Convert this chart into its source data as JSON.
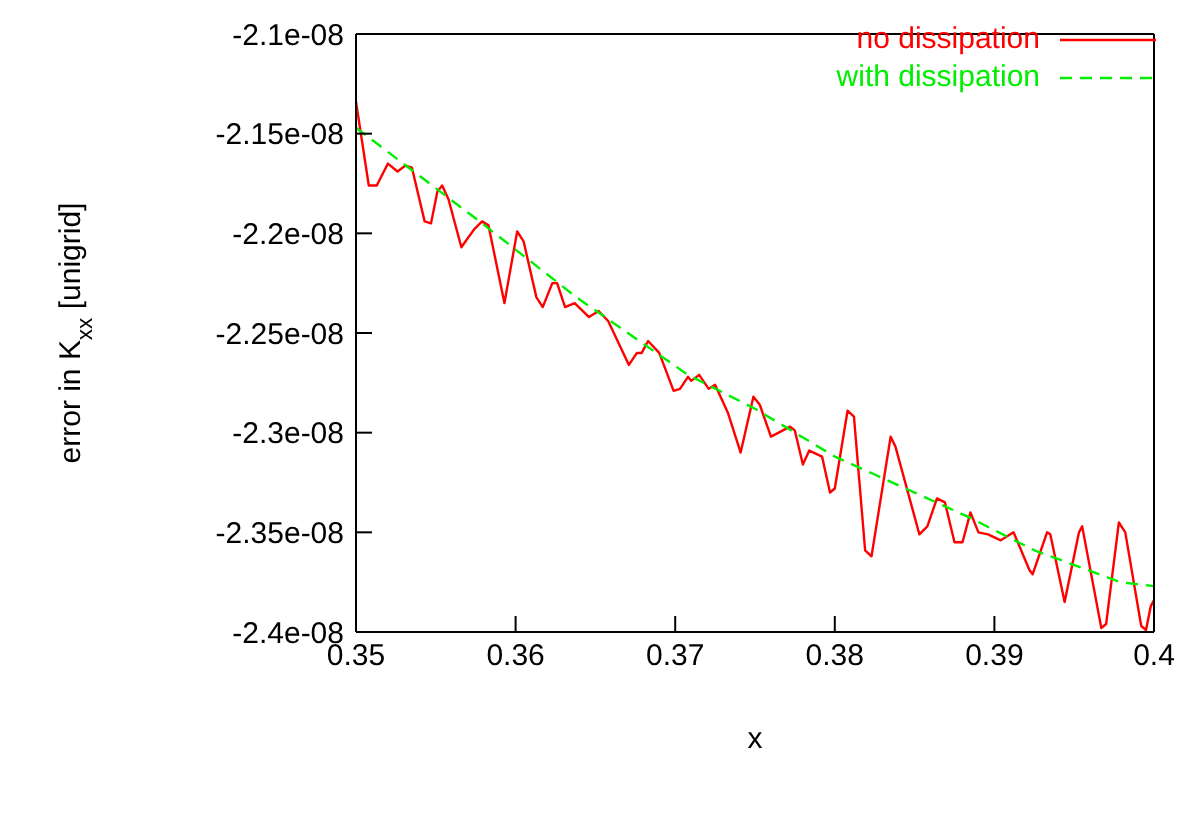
{
  "chart_data": {
    "type": "line",
    "xlabel": "x",
    "ylabel": "error in K$_{xx}$ [unigrid]",
    "xlim": [
      0.35,
      0.4
    ],
    "xticks": [
      0.35,
      0.36,
      0.37,
      0.38,
      0.39,
      0.4
    ],
    "ylim": [
      -2.4e-08,
      -2.1e-08
    ],
    "yticks": [
      {
        "value": -2.4e-08,
        "label": "-2.4e-08"
      },
      {
        "value": -2.35e-08,
        "label": "-2.35e-08"
      },
      {
        "value": -2.3e-08,
        "label": "-2.3e-08"
      },
      {
        "value": -2.25e-08,
        "label": "-2.25e-08"
      },
      {
        "value": -2.2e-08,
        "label": "-2.2e-08"
      },
      {
        "value": -2.15e-08,
        "label": "-2.15e-08"
      },
      {
        "value": -2.1e-08,
        "label": "-2.1e-08"
      }
    ],
    "legend": "top right",
    "marker": "none",
    "series": [
      {
        "name": "no dissipation",
        "color": "#ff0000",
        "line_style": "solid",
        "x": [
          0.35,
          0.3508,
          0.3513,
          0.352,
          0.3526,
          0.3531,
          0.3535,
          0.3543,
          0.3547,
          0.3551,
          0.3554,
          0.3558,
          0.3566,
          0.3574,
          0.3579,
          0.3583,
          0.3593,
          0.3601,
          0.3605,
          0.3613,
          0.3617,
          0.3623,
          0.3626,
          0.3631,
          0.3637,
          0.3646,
          0.3652,
          0.3658,
          0.3671,
          0.3676,
          0.3679,
          0.3683,
          0.369,
          0.3699,
          0.3703,
          0.3708,
          0.371,
          0.3715,
          0.3721,
          0.3725,
          0.3733,
          0.3741,
          0.3749,
          0.3753,
          0.376,
          0.3772,
          0.3775,
          0.378,
          0.3784,
          0.3792,
          0.3797,
          0.38,
          0.3808,
          0.3812,
          0.3819,
          0.3823,
          0.3835,
          0.3838,
          0.3853,
          0.3858,
          0.3864,
          0.3869,
          0.3875,
          0.388,
          0.3885,
          0.389,
          0.3896,
          0.3904,
          0.3912,
          0.3922,
          0.3924,
          0.3933,
          0.3935,
          0.3944,
          0.3953,
          0.3955,
          0.3967,
          0.397,
          0.3978,
          0.3982,
          0.3992,
          0.3995,
          0.3998,
          0.4
        ],
        "values": [
          -2.134e-08,
          -2.176e-08,
          -2.176e-08,
          -2.165e-08,
          -2.169e-08,
          -2.166e-08,
          -2.167e-08,
          -2.194e-08,
          -2.195e-08,
          -2.179e-08,
          -2.176e-08,
          -2.183e-08,
          -2.207e-08,
          -2.198e-08,
          -2.194e-08,
          -2.196e-08,
          -2.235e-08,
          -2.199e-08,
          -2.204e-08,
          -2.232e-08,
          -2.237e-08,
          -2.225e-08,
          -2.225e-08,
          -2.237e-08,
          -2.235e-08,
          -2.242e-08,
          -2.239e-08,
          -2.244e-08,
          -2.266e-08,
          -2.26e-08,
          -2.26e-08,
          -2.254e-08,
          -2.26e-08,
          -2.279e-08,
          -2.278e-08,
          -2.272e-08,
          -2.274e-08,
          -2.271e-08,
          -2.278e-08,
          -2.276e-08,
          -2.29e-08,
          -2.31e-08,
          -2.282e-08,
          -2.286e-08,
          -2.302e-08,
          -2.297e-08,
          -2.299e-08,
          -2.316e-08,
          -2.309e-08,
          -2.312e-08,
          -2.33e-08,
          -2.328e-08,
          -2.289e-08,
          -2.292e-08,
          -2.359e-08,
          -2.362e-08,
          -2.302e-08,
          -2.307e-08,
          -2.351e-08,
          -2.347e-08,
          -2.333e-08,
          -2.335e-08,
          -2.355e-08,
          -2.355e-08,
          -2.34e-08,
          -2.35e-08,
          -2.351e-08,
          -2.354e-08,
          -2.35e-08,
          -2.369e-08,
          -2.371e-08,
          -2.35e-08,
          -2.351e-08,
          -2.385e-08,
          -2.35e-08,
          -2.347e-08,
          -2.398e-08,
          -2.396e-08,
          -2.345e-08,
          -2.35e-08,
          -2.397e-08,
          -2.399e-08,
          -2.387e-08,
          -2.384e-08
        ]
      },
      {
        "name": "with dissipation",
        "color": "#00ee00",
        "line_style": "dashed",
        "x": [
          0.35,
          0.3579,
          0.3638,
          0.3708,
          0.375,
          0.38,
          0.3825,
          0.3883,
          0.3925,
          0.3979,
          0.4
        ],
        "values": [
          -2.147e-08,
          -2.195e-08,
          -2.232e-08,
          -2.271e-08,
          -2.288e-08,
          -2.312e-08,
          -2.321e-08,
          -2.342e-08,
          -2.359e-08,
          -2.375e-08,
          -2.377e-08
        ]
      }
    ]
  }
}
